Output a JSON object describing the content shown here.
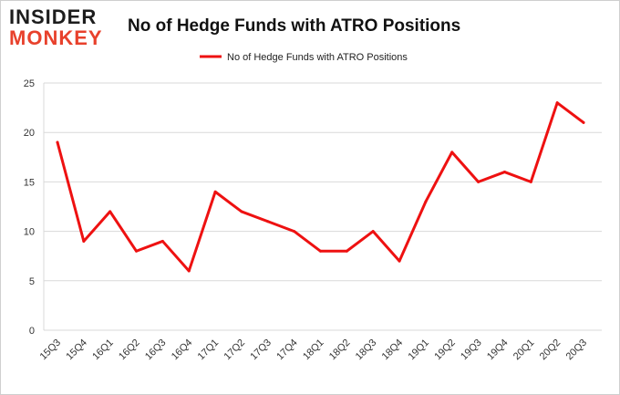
{
  "logo": {
    "line1": "INSIDER",
    "line2": "MONKEY"
  },
  "chart_data": {
    "type": "line",
    "title": "No of Hedge Funds with ATRO Positions",
    "xlabel": "",
    "ylabel": "",
    "ylim": [
      0,
      25
    ],
    "yticks": [
      0,
      5,
      10,
      15,
      20,
      25
    ],
    "grid": true,
    "legend_position": "top-center",
    "categories": [
      "15Q3",
      "15Q4",
      "16Q1",
      "16Q2",
      "16Q3",
      "16Q4",
      "17Q1",
      "17Q2",
      "17Q3",
      "17Q4",
      "18Q1",
      "18Q2",
      "18Q3",
      "18Q4",
      "19Q1",
      "19Q2",
      "19Q3",
      "19Q4",
      "20Q1",
      "20Q2",
      "20Q3"
    ],
    "series": [
      {
        "name": "No of Hedge Funds with ATRO Positions",
        "color": "#ee1111",
        "values": [
          19,
          9,
          12,
          8,
          9,
          6,
          14,
          12,
          11,
          10,
          8,
          8,
          10,
          7,
          13,
          18,
          15,
          16,
          15,
          23,
          21
        ]
      }
    ]
  }
}
